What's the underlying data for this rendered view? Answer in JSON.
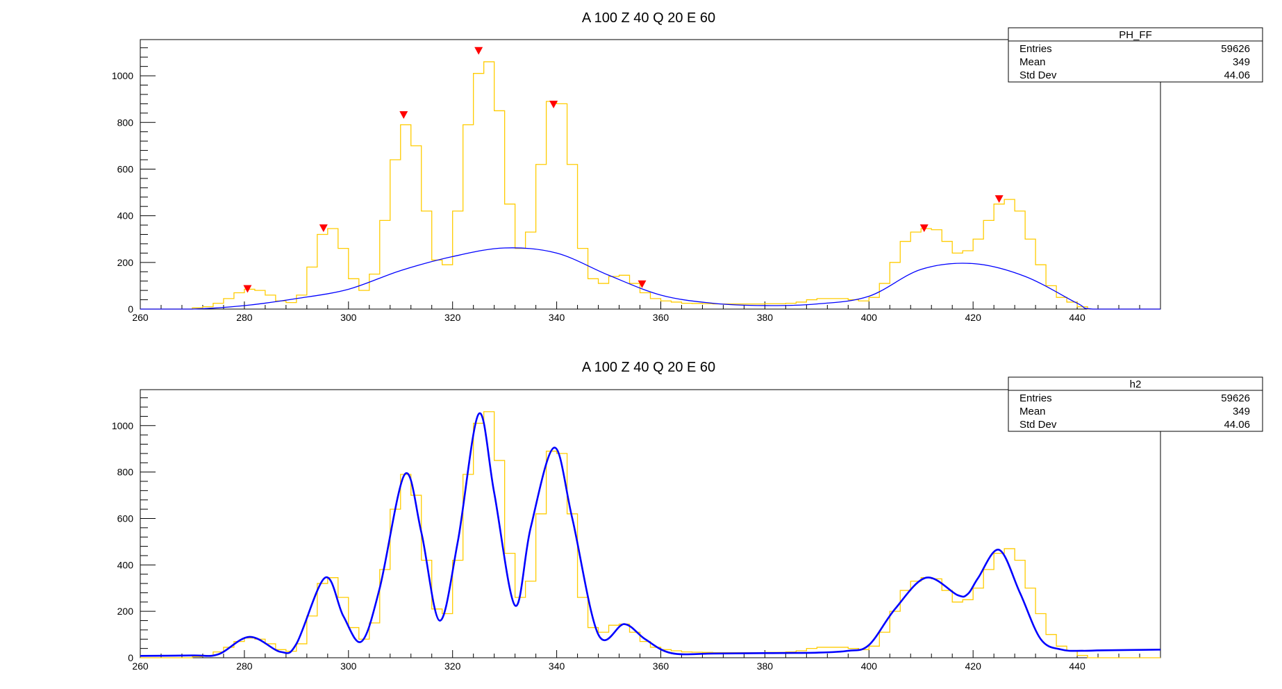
{
  "chart_data": [
    {
      "type": "line",
      "title": "A 100  Z 40 Q 20 E 60",
      "xlabel": "",
      "ylabel": "",
      "xlim": [
        260,
        456
      ],
      "ylim": [
        0,
        1155
      ],
      "x_ticks": [
        260,
        280,
        300,
        320,
        340,
        360,
        380,
        400,
        420,
        440
      ],
      "y_ticks": [
        0,
        200,
        400,
        600,
        800,
        1000
      ],
      "grid": false,
      "stats_box": {
        "name": "PH_FF",
        "rows": [
          {
            "label": "Entries",
            "value": "59626"
          },
          {
            "label": "Mean",
            "value": "349"
          },
          {
            "label": "Std Dev",
            "value": "44.06"
          }
        ]
      },
      "colors": {
        "histogram": "#ffcc00",
        "background_fit": "#0000ff",
        "peak_markers": "#ff0000"
      },
      "series": [
        {
          "style": "histogram",
          "x": [
            270,
            272,
            274,
            276,
            278,
            280,
            282,
            284,
            286,
            288,
            290,
            292,
            294,
            296,
            298,
            300,
            302,
            304,
            306,
            308,
            310,
            312,
            314,
            316,
            318,
            320,
            322,
            324,
            326,
            328,
            330,
            332,
            334,
            336,
            338,
            340,
            342,
            344,
            346,
            348,
            350,
            352,
            354,
            356,
            358,
            360,
            362,
            364,
            366,
            368,
            370,
            372,
            374,
            376,
            378,
            380,
            382,
            384,
            386,
            388,
            390,
            392,
            394,
            396,
            398,
            400,
            402,
            404,
            406,
            408,
            410,
            412,
            414,
            416,
            418,
            420,
            422,
            424,
            426,
            428,
            430,
            432,
            434,
            436,
            438,
            440,
            442
          ],
          "values": [
            5,
            10,
            25,
            45,
            70,
            85,
            80,
            60,
            35,
            28,
            60,
            180,
            320,
            345,
            260,
            130,
            80,
            150,
            380,
            640,
            790,
            700,
            420,
            210,
            190,
            420,
            790,
            1010,
            1060,
            850,
            450,
            260,
            330,
            620,
            890,
            880,
            620,
            260,
            130,
            110,
            140,
            145,
            110,
            70,
            45,
            35,
            30,
            25,
            24,
            23,
            22,
            22,
            22,
            22,
            22,
            23,
            23,
            25,
            30,
            40,
            45,
            45,
            45,
            40,
            35,
            50,
            110,
            200,
            290,
            330,
            345,
            340,
            290,
            240,
            250,
            300,
            380,
            450,
            470,
            420,
            300,
            190,
            100,
            50,
            30,
            10,
            0
          ]
        },
        {
          "style": "line",
          "name": "background",
          "x": [
            260,
            270,
            280,
            290,
            300,
            310,
            320,
            330,
            340,
            350,
            360,
            370,
            380,
            390,
            400,
            410,
            420,
            430,
            440,
            443,
            456
          ],
          "values": [
            0,
            0,
            15,
            45,
            85,
            165,
            225,
            262,
            240,
            145,
            60,
            25,
            15,
            22,
            55,
            170,
            195,
            140,
            25,
            0,
            0
          ]
        }
      ],
      "peak_markers": [
        {
          "x": 280.6,
          "y": 85
        },
        {
          "x": 295.2,
          "y": 345
        },
        {
          "x": 310.6,
          "y": 830
        },
        {
          "x": 325.0,
          "y": 1105
        },
        {
          "x": 339.4,
          "y": 875
        },
        {
          "x": 356.4,
          "y": 105
        },
        {
          "x": 410.6,
          "y": 345
        },
        {
          "x": 425.0,
          "y": 470
        }
      ]
    },
    {
      "type": "line",
      "title": "A 100  Z 40 Q 20 E 60",
      "xlabel": "",
      "ylabel": "",
      "xlim": [
        260,
        456
      ],
      "ylim": [
        0,
        1155
      ],
      "x_ticks": [
        260,
        280,
        300,
        320,
        340,
        360,
        380,
        400,
        420,
        440
      ],
      "y_ticks": [
        0,
        200,
        400,
        600,
        800,
        1000
      ],
      "grid": false,
      "stats_box": {
        "name": "h2",
        "rows": [
          {
            "label": "Entries",
            "value": "59626"
          },
          {
            "label": "Mean",
            "value": "349"
          },
          {
            "label": "Std Dev",
            "value": "44.06"
          }
        ]
      },
      "colors": {
        "histogram": "#ffcc00",
        "fit": "#0000ff"
      },
      "series": [
        {
          "style": "histogram",
          "x": [
            270,
            272,
            274,
            276,
            278,
            280,
            282,
            284,
            286,
            288,
            290,
            292,
            294,
            296,
            298,
            300,
            302,
            304,
            306,
            308,
            310,
            312,
            314,
            316,
            318,
            320,
            322,
            324,
            326,
            328,
            330,
            332,
            334,
            336,
            338,
            340,
            342,
            344,
            346,
            348,
            350,
            352,
            354,
            356,
            358,
            360,
            362,
            364,
            366,
            368,
            370,
            372,
            374,
            376,
            378,
            380,
            382,
            384,
            386,
            388,
            390,
            392,
            394,
            396,
            398,
            400,
            402,
            404,
            406,
            408,
            410,
            412,
            414,
            416,
            418,
            420,
            422,
            424,
            426,
            428,
            430,
            432,
            434,
            436,
            438,
            440,
            442
          ],
          "values": [
            5,
            10,
            25,
            45,
            70,
            85,
            80,
            60,
            35,
            28,
            60,
            180,
            320,
            345,
            260,
            130,
            80,
            150,
            380,
            640,
            790,
            700,
            420,
            210,
            190,
            420,
            790,
            1010,
            1060,
            850,
            450,
            260,
            330,
            620,
            890,
            880,
            620,
            260,
            130,
            110,
            140,
            145,
            110,
            70,
            45,
            35,
            30,
            25,
            24,
            23,
            22,
            22,
            22,
            22,
            22,
            23,
            23,
            25,
            30,
            40,
            45,
            45,
            45,
            40,
            35,
            50,
            110,
            200,
            290,
            330,
            345,
            340,
            290,
            240,
            250,
            300,
            380,
            450,
            470,
            420,
            300,
            190,
            100,
            50,
            30,
            10,
            0
          ]
        },
        {
          "style": "line",
          "name": "fit",
          "x": [
            260,
            270,
            275,
            281,
            287,
            290,
            295.5,
            299,
            302.5,
            306,
            310.8,
            314,
            317.5,
            321,
            325,
            328,
            332,
            335,
            339.5,
            343,
            348,
            353,
            357,
            362,
            370,
            380,
            390,
            396,
            400,
            405,
            411,
            417,
            419,
            421,
            425,
            429,
            433,
            437,
            441,
            445,
            456
          ],
          "values": [
            8,
            10,
            15,
            90,
            25,
            60,
            345,
            180,
            70,
            300,
            790,
            540,
            160,
            500,
            1050,
            710,
            225,
            560,
            905,
            600,
            100,
            145,
            80,
            20,
            18,
            20,
            22,
            30,
            55,
            210,
            345,
            270,
            275,
            345,
            465,
            280,
            80,
            35,
            30,
            32,
            35
          ]
        }
      ]
    }
  ]
}
